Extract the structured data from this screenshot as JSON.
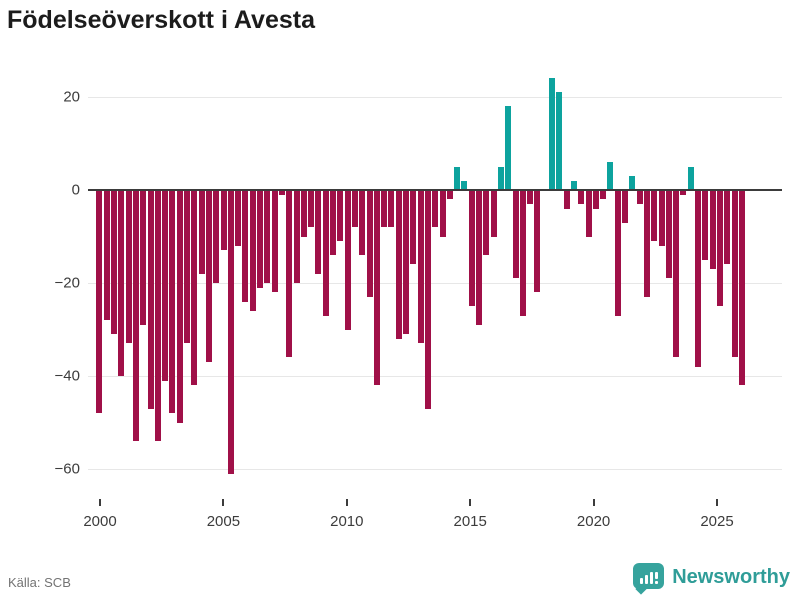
{
  "title": "Födelseöverskott i Avesta",
  "footer": {
    "source": "Källa: SCB"
  },
  "brand": {
    "name": "Newsworthy",
    "icon": "bar-chart-speech-bubble-icon"
  },
  "colors": {
    "negative": "#a01048",
    "positive": "#0da39e",
    "zero_line": "#3b3b3b",
    "grid": "#e7e7e7",
    "title_text": "#1c1c1c",
    "axis_text": "#3c3c3c",
    "muted_text": "#737373",
    "brand_teal": "#2f9d98"
  },
  "chart_data": {
    "type": "bar",
    "title": "Födelseöverskott i Avesta",
    "xlabel": "",
    "ylabel": "",
    "grid": true,
    "legend": false,
    "x_axis": {
      "ticks": [
        2000,
        2005,
        2010,
        2015,
        2020,
        2025
      ],
      "start_year": 2000,
      "end_year": 2026,
      "approx_period_years": 0.296
    },
    "y_axis": {
      "ticks": [
        20,
        0,
        -20,
        -40,
        -60
      ],
      "range": [
        -65,
        28
      ]
    },
    "values": [
      -48,
      -28,
      -31,
      -40,
      -33,
      -54,
      -29,
      -47,
      -54,
      -41,
      -48,
      -50,
      -33,
      -42,
      -18,
      -37,
      -20,
      -13,
      -61,
      -12,
      -24,
      -26,
      -21,
      -20,
      -22,
      -1,
      -36,
      -20,
      -10,
      -8,
      -18,
      -27,
      -14,
      -11,
      -30,
      -8,
      -14,
      -23,
      -42,
      -8,
      -8,
      -32,
      -31,
      -16,
      -33,
      -47,
      -8,
      -10,
      -2,
      5,
      2,
      -25,
      -29,
      -14,
      -10,
      5,
      18,
      -19,
      -27,
      -3,
      -22,
      0,
      24,
      21,
      -4,
      2,
      -3,
      -10,
      -4,
      -2,
      6,
      -27,
      -7,
      3,
      -3,
      -23,
      -11,
      -12,
      -19,
      -36,
      -1,
      5,
      -38,
      -15,
      -17,
      -25,
      -16,
      -36,
      -42
    ]
  }
}
